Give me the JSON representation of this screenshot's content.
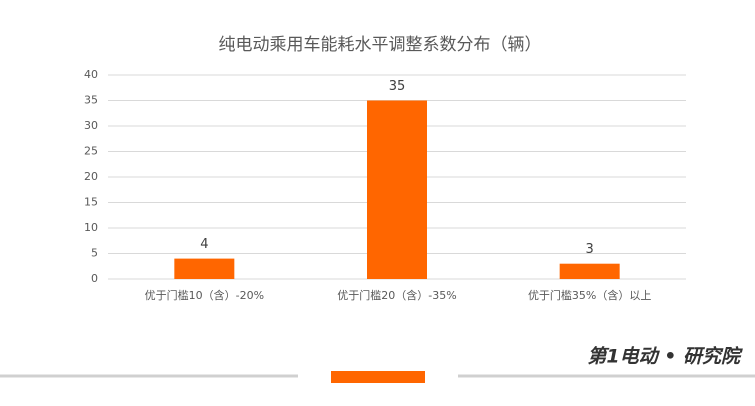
{
  "chart_data": {
    "type": "bar",
    "title": "纯电动乘用车能耗水平调整系数分布（辆）",
    "categories": [
      "优于门槛10（含）-20%",
      "优于门槛20（含）-35%",
      "优于门槛35%（含）以上"
    ],
    "values": [
      4,
      35,
      3
    ],
    "color": "#ff6600",
    "ylim": [
      0,
      40
    ],
    "yticks": [
      0,
      5,
      10,
      15,
      20,
      25,
      30,
      35,
      40
    ],
    "grid": true
  },
  "footer": {
    "logo": "第1电动 • 研究院"
  }
}
